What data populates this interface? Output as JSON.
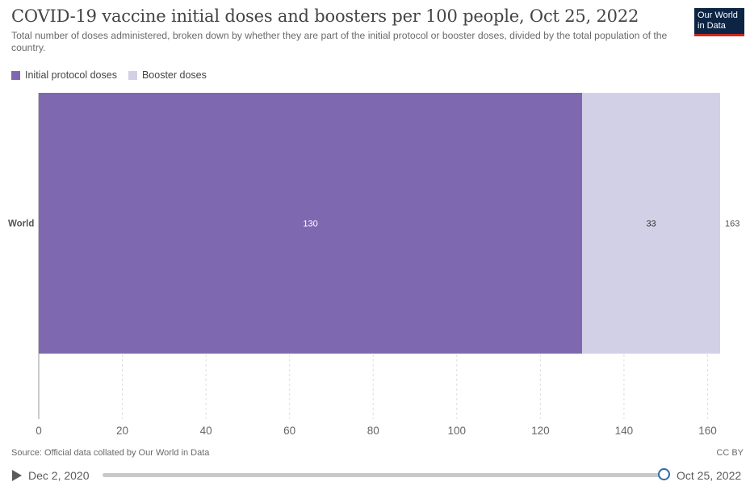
{
  "header": {
    "title": "COVID-19 vaccine initial doses and boosters per 100 people, Oct 25, 2022",
    "subtitle": "Total number of doses administered, broken down by whether they are part of the initial protocol or booster doses, divided by the total population of the country.",
    "logo_line1": "Our World",
    "logo_line2": "in Data",
    "logo_color": "#0d2545",
    "logo_accent": "#ce261e"
  },
  "legend": [
    {
      "label": "Initial protocol doses",
      "color": "#7e69b0"
    },
    {
      "label": "Booster doses",
      "color": "#d2d0e6"
    }
  ],
  "chart_data": {
    "type": "bar",
    "orientation": "horizontal",
    "stacked": true,
    "categories": [
      "World"
    ],
    "series": [
      {
        "name": "Initial protocol doses",
        "values": [
          130
        ],
        "color": "#7e69b0",
        "data_labels": [
          "130"
        ]
      },
      {
        "name": "Booster doses",
        "values": [
          33
        ],
        "color": "#d2d0e6",
        "data_labels": [
          "33"
        ]
      }
    ],
    "totals": [
      163
    ],
    "total_labels": [
      "163"
    ],
    "xlim": [
      0,
      163
    ],
    "xticks": [
      0,
      20,
      40,
      60,
      80,
      100,
      120,
      140,
      160
    ],
    "tick_labels": [
      "0",
      "20",
      "40",
      "60",
      "80",
      "100",
      "120",
      "140",
      "160"
    ],
    "grid": "vertical dashed",
    "legend_position": "top-left"
  },
  "footer": {
    "source": "Source: Official data collated by Our World in Data",
    "license": "CC BY"
  },
  "timeline": {
    "start_date": "Dec 2, 2020",
    "end_date": "Oct 25, 2022",
    "position": 1.0
  }
}
